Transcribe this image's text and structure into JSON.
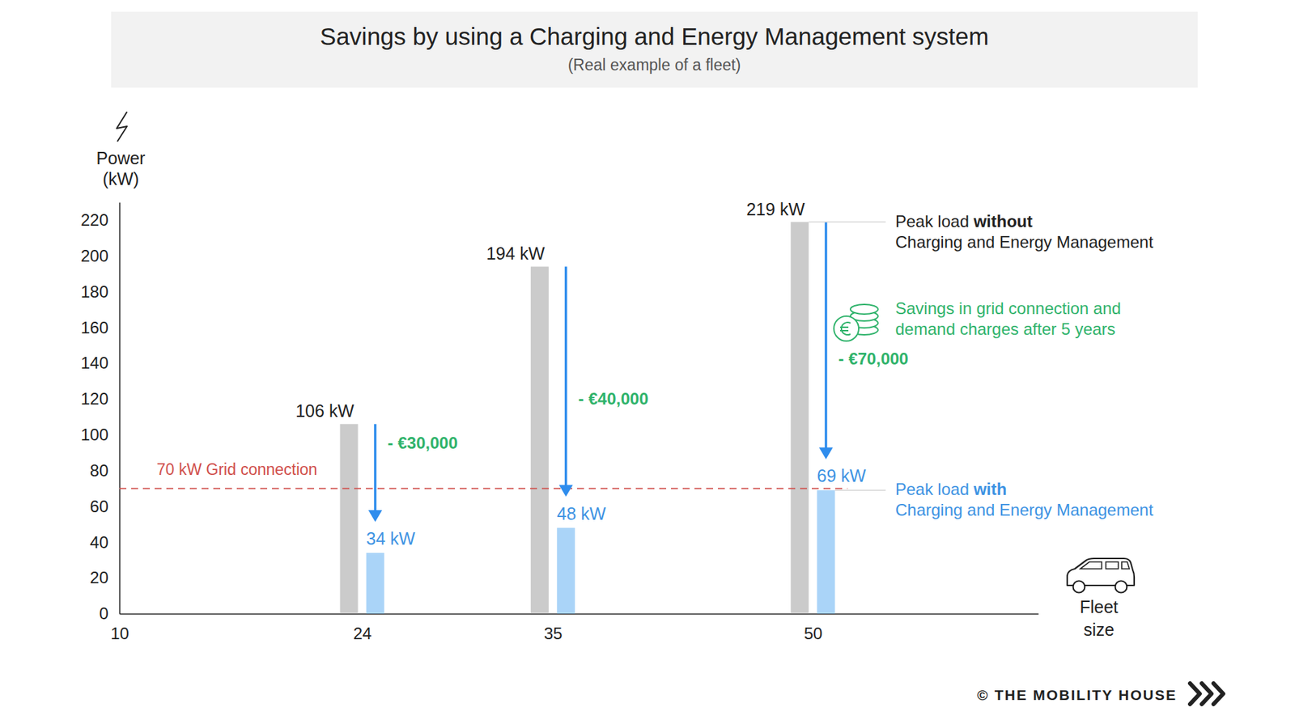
{
  "chart_data": {
    "type": "bar",
    "title": "Savings by using a Charging and Energy Management system",
    "subtitle": "(Real example of a fleet)",
    "x_label": "Fleet size",
    "y_label": "Power (kW)",
    "x": [
      24,
      35,
      50
    ],
    "xlim": [
      10,
      63
    ],
    "xticks": [
      10,
      24,
      35,
      50
    ],
    "ylim": [
      0,
      230
    ],
    "yticks": [
      0,
      20,
      40,
      60,
      80,
      100,
      120,
      140,
      160,
      180,
      200,
      220
    ],
    "grid": false,
    "data_labels": true,
    "series": [
      {
        "name": "Peak load without Charging and Energy Management",
        "color": "#cbcbcb",
        "values": [
          106,
          194,
          219
        ],
        "value_labels": [
          "106 kW",
          "194 kW",
          "219 kW"
        ]
      },
      {
        "name": "Peak load with Charging and Energy Management",
        "color": "#aad4f8",
        "values": [
          34,
          48,
          69
        ],
        "value_labels": [
          "34 kW",
          "48 kW",
          "69 kW"
        ]
      }
    ],
    "reference_line": {
      "value": 70,
      "label": "70 kW Grid connection",
      "color": "#d0504d"
    },
    "savings": {
      "labels": [
        "- €30,000",
        "- €40,000",
        "- €70,000"
      ],
      "note": [
        "Savings in grid connection and",
        "demand charges after 5 years"
      ],
      "color": "#2fb36b"
    },
    "source": "© THE MOBILITY HOUSE"
  }
}
